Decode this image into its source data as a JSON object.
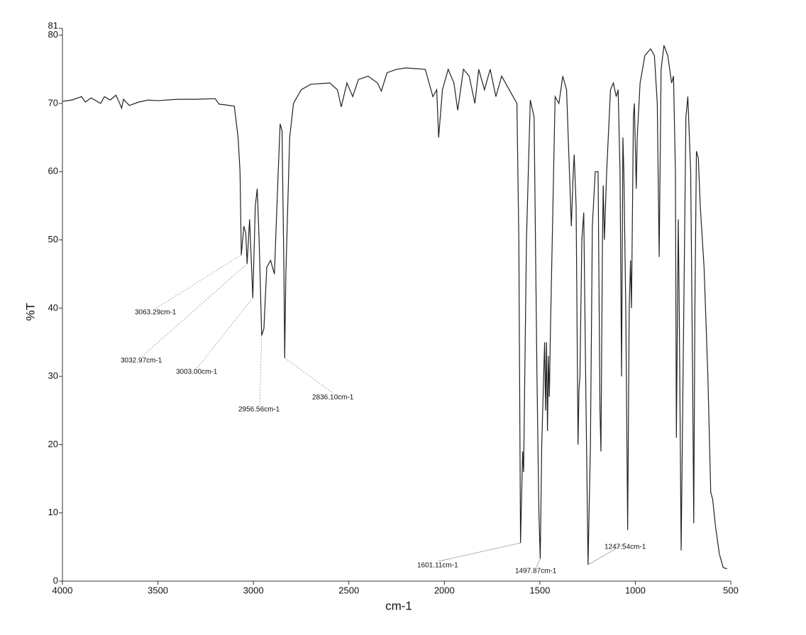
{
  "chart_data": {
    "type": "line",
    "xlabel": "cm-1",
    "ylabel": "%T",
    "xlim": [
      4000,
      500
    ],
    "ylim": [
      0,
      81
    ],
    "xticks": [
      4000,
      3500,
      3000,
      2500,
      2000,
      1500,
      1000,
      500
    ],
    "yticks": [
      0,
      10,
      20,
      30,
      40,
      50,
      60,
      70,
      80,
      81
    ],
    "color": "#222222",
    "x": [
      4000,
      3950,
      3900,
      3880,
      3850,
      3800,
      3780,
      3750,
      3720,
      3700,
      3690,
      3680,
      3650,
      3600,
      3550,
      3500,
      3400,
      3300,
      3200,
      3180,
      3150,
      3100,
      3080,
      3070,
      3063.29,
      3050,
      3040,
      3032.97,
      3020,
      3003,
      2990,
      2980,
      2970,
      2956.56,
      2945,
      2930,
      2910,
      2890,
      2870,
      2860,
      2850,
      2840,
      2836.1,
      2830,
      2810,
      2790,
      2750,
      2700,
      2600,
      2560,
      2540,
      2510,
      2480,
      2450,
      2400,
      2350,
      2330,
      2300,
      2250,
      2200,
      2100,
      2060,
      2040,
      2030,
      2010,
      1980,
      1950,
      1930,
      1900,
      1870,
      1840,
      1820,
      1790,
      1760,
      1730,
      1700,
      1660,
      1620,
      1610,
      1601.11,
      1590,
      1585,
      1570,
      1550,
      1530,
      1515,
      1505,
      1497.87,
      1490,
      1475,
      1470,
      1465,
      1460,
      1455,
      1450,
      1445,
      1435,
      1420,
      1400,
      1380,
      1360,
      1335,
      1325,
      1320,
      1310,
      1300,
      1295,
      1290,
      1280,
      1270,
      1260,
      1247.54,
      1235,
      1225,
      1210,
      1195,
      1185,
      1180,
      1172,
      1168,
      1162,
      1150,
      1130,
      1115,
      1100,
      1090,
      1080,
      1072,
      1065,
      1060,
      1050,
      1040,
      1032,
      1025,
      1020,
      1010,
      1005,
      995,
      990,
      975,
      950,
      920,
      900,
      885,
      875,
      865,
      850,
      830,
      810,
      800,
      790,
      785,
      775,
      770,
      760,
      750,
      735,
      725,
      710,
      700,
      694,
      688,
      680,
      670,
      660,
      640,
      620,
      605,
      595,
      580,
      560,
      540,
      520
    ],
    "values": [
      70.3,
      70.5,
      71,
      70.2,
      70.8,
      70,
      71,
      70.5,
      71.2,
      70,
      69.3,
      70.6,
      69.7,
      70.2,
      70.5,
      70.4,
      70.6,
      70.6,
      70.7,
      69.9,
      69.8,
      69.6,
      65,
      60,
      47.8,
      52,
      51,
      46.5,
      53,
      41.5,
      55,
      57.5,
      50,
      36,
      37,
      46,
      47,
      45,
      60,
      67,
      66,
      45,
      32.7,
      45,
      65,
      70,
      72,
      72.8,
      73,
      72,
      69.5,
      73,
      71,
      73.5,
      74,
      73,
      71.8,
      74.5,
      75,
      75.2,
      75,
      71,
      72,
      65,
      72,
      75,
      73,
      69,
      75,
      74,
      70,
      75,
      72,
      75,
      71,
      74,
      72,
      70,
      50,
      5.6,
      19,
      16,
      50,
      70.5,
      68,
      30,
      10,
      3.3,
      20,
      35,
      25,
      35,
      22,
      33,
      27,
      36,
      50,
      71,
      70,
      74,
      72,
      52,
      60,
      62.5,
      55,
      20,
      28,
      30,
      50,
      54,
      30,
      2.4,
      20,
      52,
      60,
      60,
      25,
      19,
      50,
      58,
      50,
      60,
      72,
      73,
      71,
      72,
      60,
      30,
      65,
      60,
      40,
      7.5,
      40,
      47,
      40,
      68,
      70,
      57.5,
      65,
      73,
      77,
      78,
      77,
      70,
      47.5,
      75,
      78.5,
      77,
      73,
      74,
      60,
      21,
      53,
      40,
      4.5,
      30,
      68,
      71,
      60,
      30,
      8.5,
      40,
      63,
      62,
      55,
      46,
      30,
      13,
      12,
      8,
      4,
      2,
      1.8
    ],
    "annotations": [
      {
        "label": "3063.29cm-1",
        "x": 3063.29,
        "y": 47.8
      },
      {
        "label": "3032.97cm-1",
        "x": 3032.97,
        "y": 46.5
      },
      {
        "label": "3003.00cm-1",
        "x": 3003,
        "y": 41.5
      },
      {
        "label": "2956.56cm-1",
        "x": 2956.56,
        "y": 36
      },
      {
        "label": "2836.10cm-1",
        "x": 2836.1,
        "y": 32.7
      },
      {
        "label": "1601.11cm-1",
        "x": 1601.11,
        "y": 5.6
      },
      {
        "label": "1497.87cm-1",
        "x": 1497.87,
        "y": 3.3
      },
      {
        "label": "1247.54cm-1",
        "x": 1247.54,
        "y": 2.4
      }
    ]
  }
}
